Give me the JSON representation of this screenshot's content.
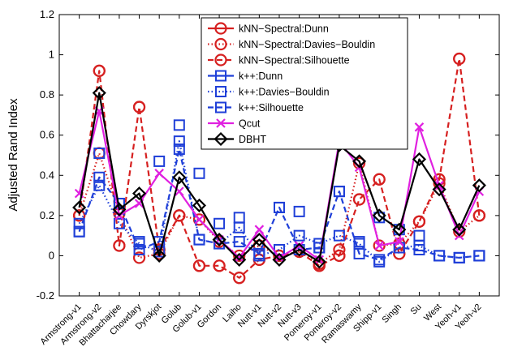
{
  "chart_data": {
    "type": "line",
    "title": "",
    "xlabel": "",
    "ylabel": "Adjusted Rand Index",
    "ylim": [
      -0.2,
      1.2
    ],
    "yticks": [
      "-0.2",
      "0",
      "0.2",
      "0.4",
      "0.6",
      "0.8",
      "1",
      "1.2"
    ],
    "grid": false,
    "legend_position": "top-center",
    "categories": [
      "Armstrong-v1",
      "Armstrong-v2",
      "Bhattacharjee",
      "Chowdary",
      "Dyrskjot",
      "Golub",
      "Golub-v1",
      "Gordon",
      "Laiho",
      "Nutt-v1",
      "Nutt-v2",
      "Nutt-v3",
      "Pomeroy-v1",
      "Pomeroy-v2",
      "Ramaswamy",
      "Shipp-v1",
      "Singh",
      "Su",
      "West",
      "Yeoh-v1",
      "Yeoh-v2"
    ],
    "series": [
      {
        "name": "kNN−Spectral:Dunn",
        "color": "#d62020",
        "dash": "solid",
        "marker": "circle",
        "marker_filled": false,
        "line_visible": false,
        "values": [
          0.2,
          0.92,
          0.05,
          0.74,
          0.03,
          0.2,
          -0.05,
          -0.05,
          -0.11,
          -0.02,
          0.0,
          0.02,
          -0.05,
          0.0,
          0.28,
          0.38,
          0.01,
          0.17,
          0.38,
          0.98,
          0.2
        ]
      },
      {
        "name": "kNN−Spectral:Davies−Bouldin",
        "color": "#d62020",
        "dash": "dotted",
        "marker": "circle",
        "marker_filled": false,
        "line_visible": true,
        "values": [
          0.2,
          0.51,
          0.21,
          -0.01,
          0.01,
          0.2,
          0.18,
          0.07,
          0.0,
          0.05,
          0.0,
          0.02,
          -0.04,
          0.03,
          0.46,
          0.05,
          0.06,
          0.17,
          0.36,
          0.12,
          0.2
        ]
      },
      {
        "name": "kNN−Spectral:Silhouette",
        "color": "#d62020",
        "dash": "dashed",
        "marker": "circle",
        "marker_filled": false,
        "line_visible": true,
        "values": [
          0.2,
          0.92,
          0.05,
          0.74,
          0.03,
          0.2,
          -0.05,
          -0.05,
          -0.11,
          -0.02,
          0.0,
          0.02,
          -0.05,
          0.0,
          0.28,
          0.38,
          0.01,
          0.17,
          0.38,
          0.98,
          0.2
        ]
      },
      {
        "name": "k++:Dunn",
        "color": "#1f3fd8",
        "dash": "solid",
        "marker": "square",
        "marker_filled": false,
        "line_visible": false,
        "values": [
          0.12,
          0.51,
          0.26,
          0.07,
          0.47,
          0.65,
          0.41,
          0.16,
          0.19,
          0.01,
          0.24,
          0.22,
          0.04,
          0.32,
          0.07,
          0.19,
          0.13,
          0.1,
          0.0,
          -0.01,
          0.0
        ]
      },
      {
        "name": "k++:Davies−Bouldin",
        "color": "#1f3fd8",
        "dash": "dotted",
        "marker": "square",
        "marker_filled": false,
        "line_visible": true,
        "values": [
          0.16,
          0.35,
          0.16,
          0.06,
          0.02,
          0.57,
          0.08,
          0.06,
          0.14,
          0.0,
          0.03,
          0.1,
          0.06,
          0.1,
          0.06,
          -0.03,
          0.04,
          0.05,
          0.0,
          -0.01,
          0.0
        ]
      },
      {
        "name": "k++:Silhouette",
        "color": "#1f3fd8",
        "dash": "dashed",
        "marker": "square",
        "marker_filled": false,
        "line_visible": true,
        "values": [
          0.12,
          0.39,
          0.26,
          0.03,
          0.07,
          0.53,
          0.08,
          0.06,
          0.07,
          0.01,
          0.24,
          0.03,
          0.04,
          0.32,
          0.01,
          -0.02,
          0.04,
          0.03,
          0.0,
          -0.01,
          0.0
        ]
      },
      {
        "name": "Qcut",
        "color": "#e020e0",
        "dash": "solid",
        "marker": "x",
        "marker_filled": false,
        "line_visible": true,
        "values": [
          0.31,
          0.72,
          0.2,
          0.26,
          0.41,
          0.32,
          0.18,
          0.08,
          -0.01,
          0.13,
          -0.01,
          0.05,
          -0.02,
          0.57,
          0.44,
          0.05,
          0.07,
          0.64,
          0.35,
          0.1,
          0.32
        ]
      },
      {
        "name": "DBHT",
        "color": "#000000",
        "dash": "solid",
        "marker": "diamond",
        "marker_filled": false,
        "line_visible": true,
        "values": [
          0.24,
          0.81,
          0.23,
          0.31,
          0.0,
          0.39,
          0.25,
          0.08,
          -0.02,
          0.08,
          -0.02,
          0.03,
          -0.03,
          0.55,
          0.47,
          0.2,
          0.13,
          0.48,
          0.33,
          0.13,
          0.35
        ]
      }
    ]
  }
}
